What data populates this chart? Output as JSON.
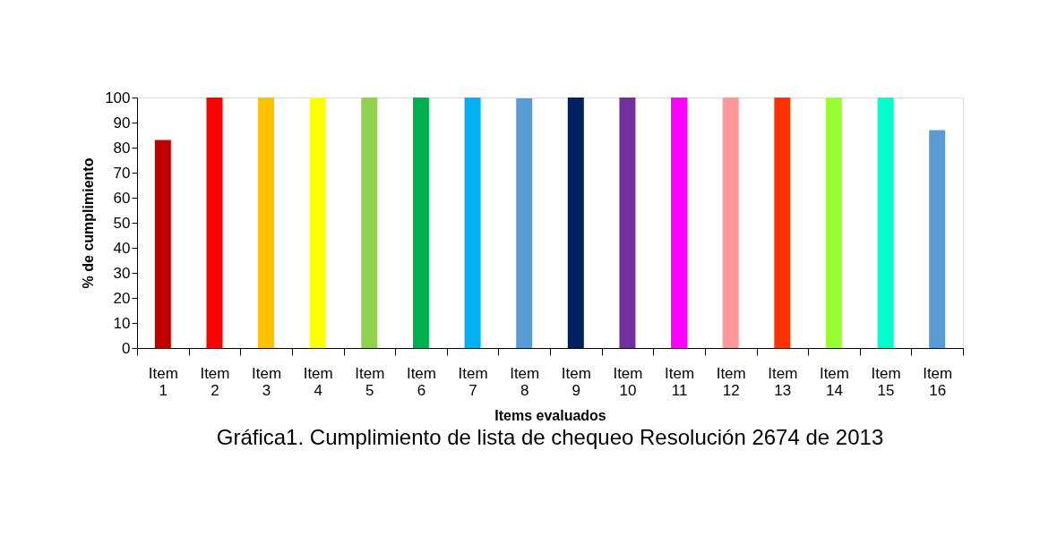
{
  "chart_data": {
    "type": "bar",
    "title": "Gráfica1. Cumplimiento de lista de chequeo Resolución 2674 de 2013",
    "xlabel": "Items evaluados",
    "ylabel": "% de cumplimiento",
    "categories": [
      "Item 1",
      "Item 2",
      "Item 3",
      "Item 4",
      "Item 5",
      "Item 6",
      "Item 7",
      "Item 8",
      "Item 9",
      "Item 10",
      "Item 11",
      "Item 12",
      "Item 13",
      "Item 14",
      "Item 15",
      "Item 16"
    ],
    "values": [
      83,
      100,
      100,
      100,
      100,
      100,
      100,
      99.6,
      100,
      100,
      100,
      100,
      100,
      100,
      100,
      87
    ],
    "colors": [
      "#c00000",
      "#ff0000",
      "#ffc000",
      "#ffff00",
      "#92d050",
      "#00b050",
      "#00b0f0",
      "#5b9bd5",
      "#002060",
      "#7030a0",
      "#ff00ff",
      "#ff9999",
      "#ff3300",
      "#99ff33",
      "#00ffcc",
      "#5b9bd5"
    ],
    "ylim": [
      0,
      100
    ],
    "yticks": [
      0,
      10,
      20,
      30,
      40,
      50,
      60,
      70,
      80,
      90,
      100
    ],
    "grid": false,
    "legend": false
  }
}
